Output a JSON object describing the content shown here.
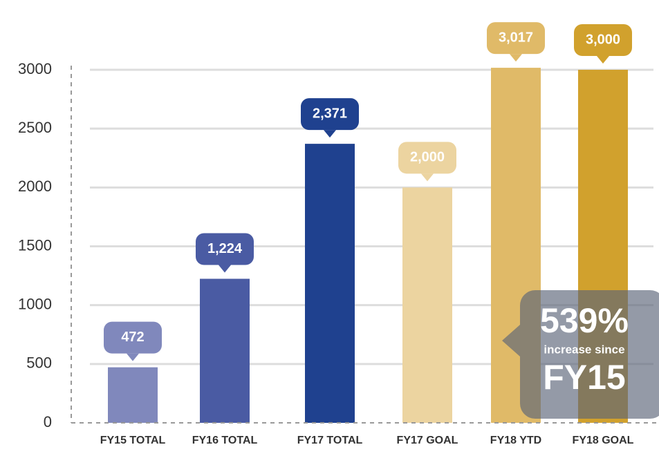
{
  "chart_data": {
    "type": "bar",
    "categories": [
      "FY15 TOTAL",
      "FY16 TOTAL",
      "FY17 TOTAL",
      "FY17 GOAL",
      "FY18 YTD",
      "FY18 GOAL"
    ],
    "values": [
      472,
      1224,
      2371,
      2000,
      3017,
      3000
    ],
    "value_labels": [
      "472",
      "1,224",
      "2,371",
      "2,000",
      "3,017",
      "3,000"
    ],
    "colors": [
      "#8088bc",
      "#4a5ba3",
      "#1f418f",
      "#ecd4a0",
      "#e0ba68",
      "#d1a12d"
    ],
    "ylim": [
      0,
      3000
    ],
    "yticks": [
      0,
      500,
      1000,
      1500,
      2000,
      2500,
      3000
    ],
    "grid": true,
    "annotations": [
      "539%",
      "increase since",
      "FY15"
    ]
  }
}
